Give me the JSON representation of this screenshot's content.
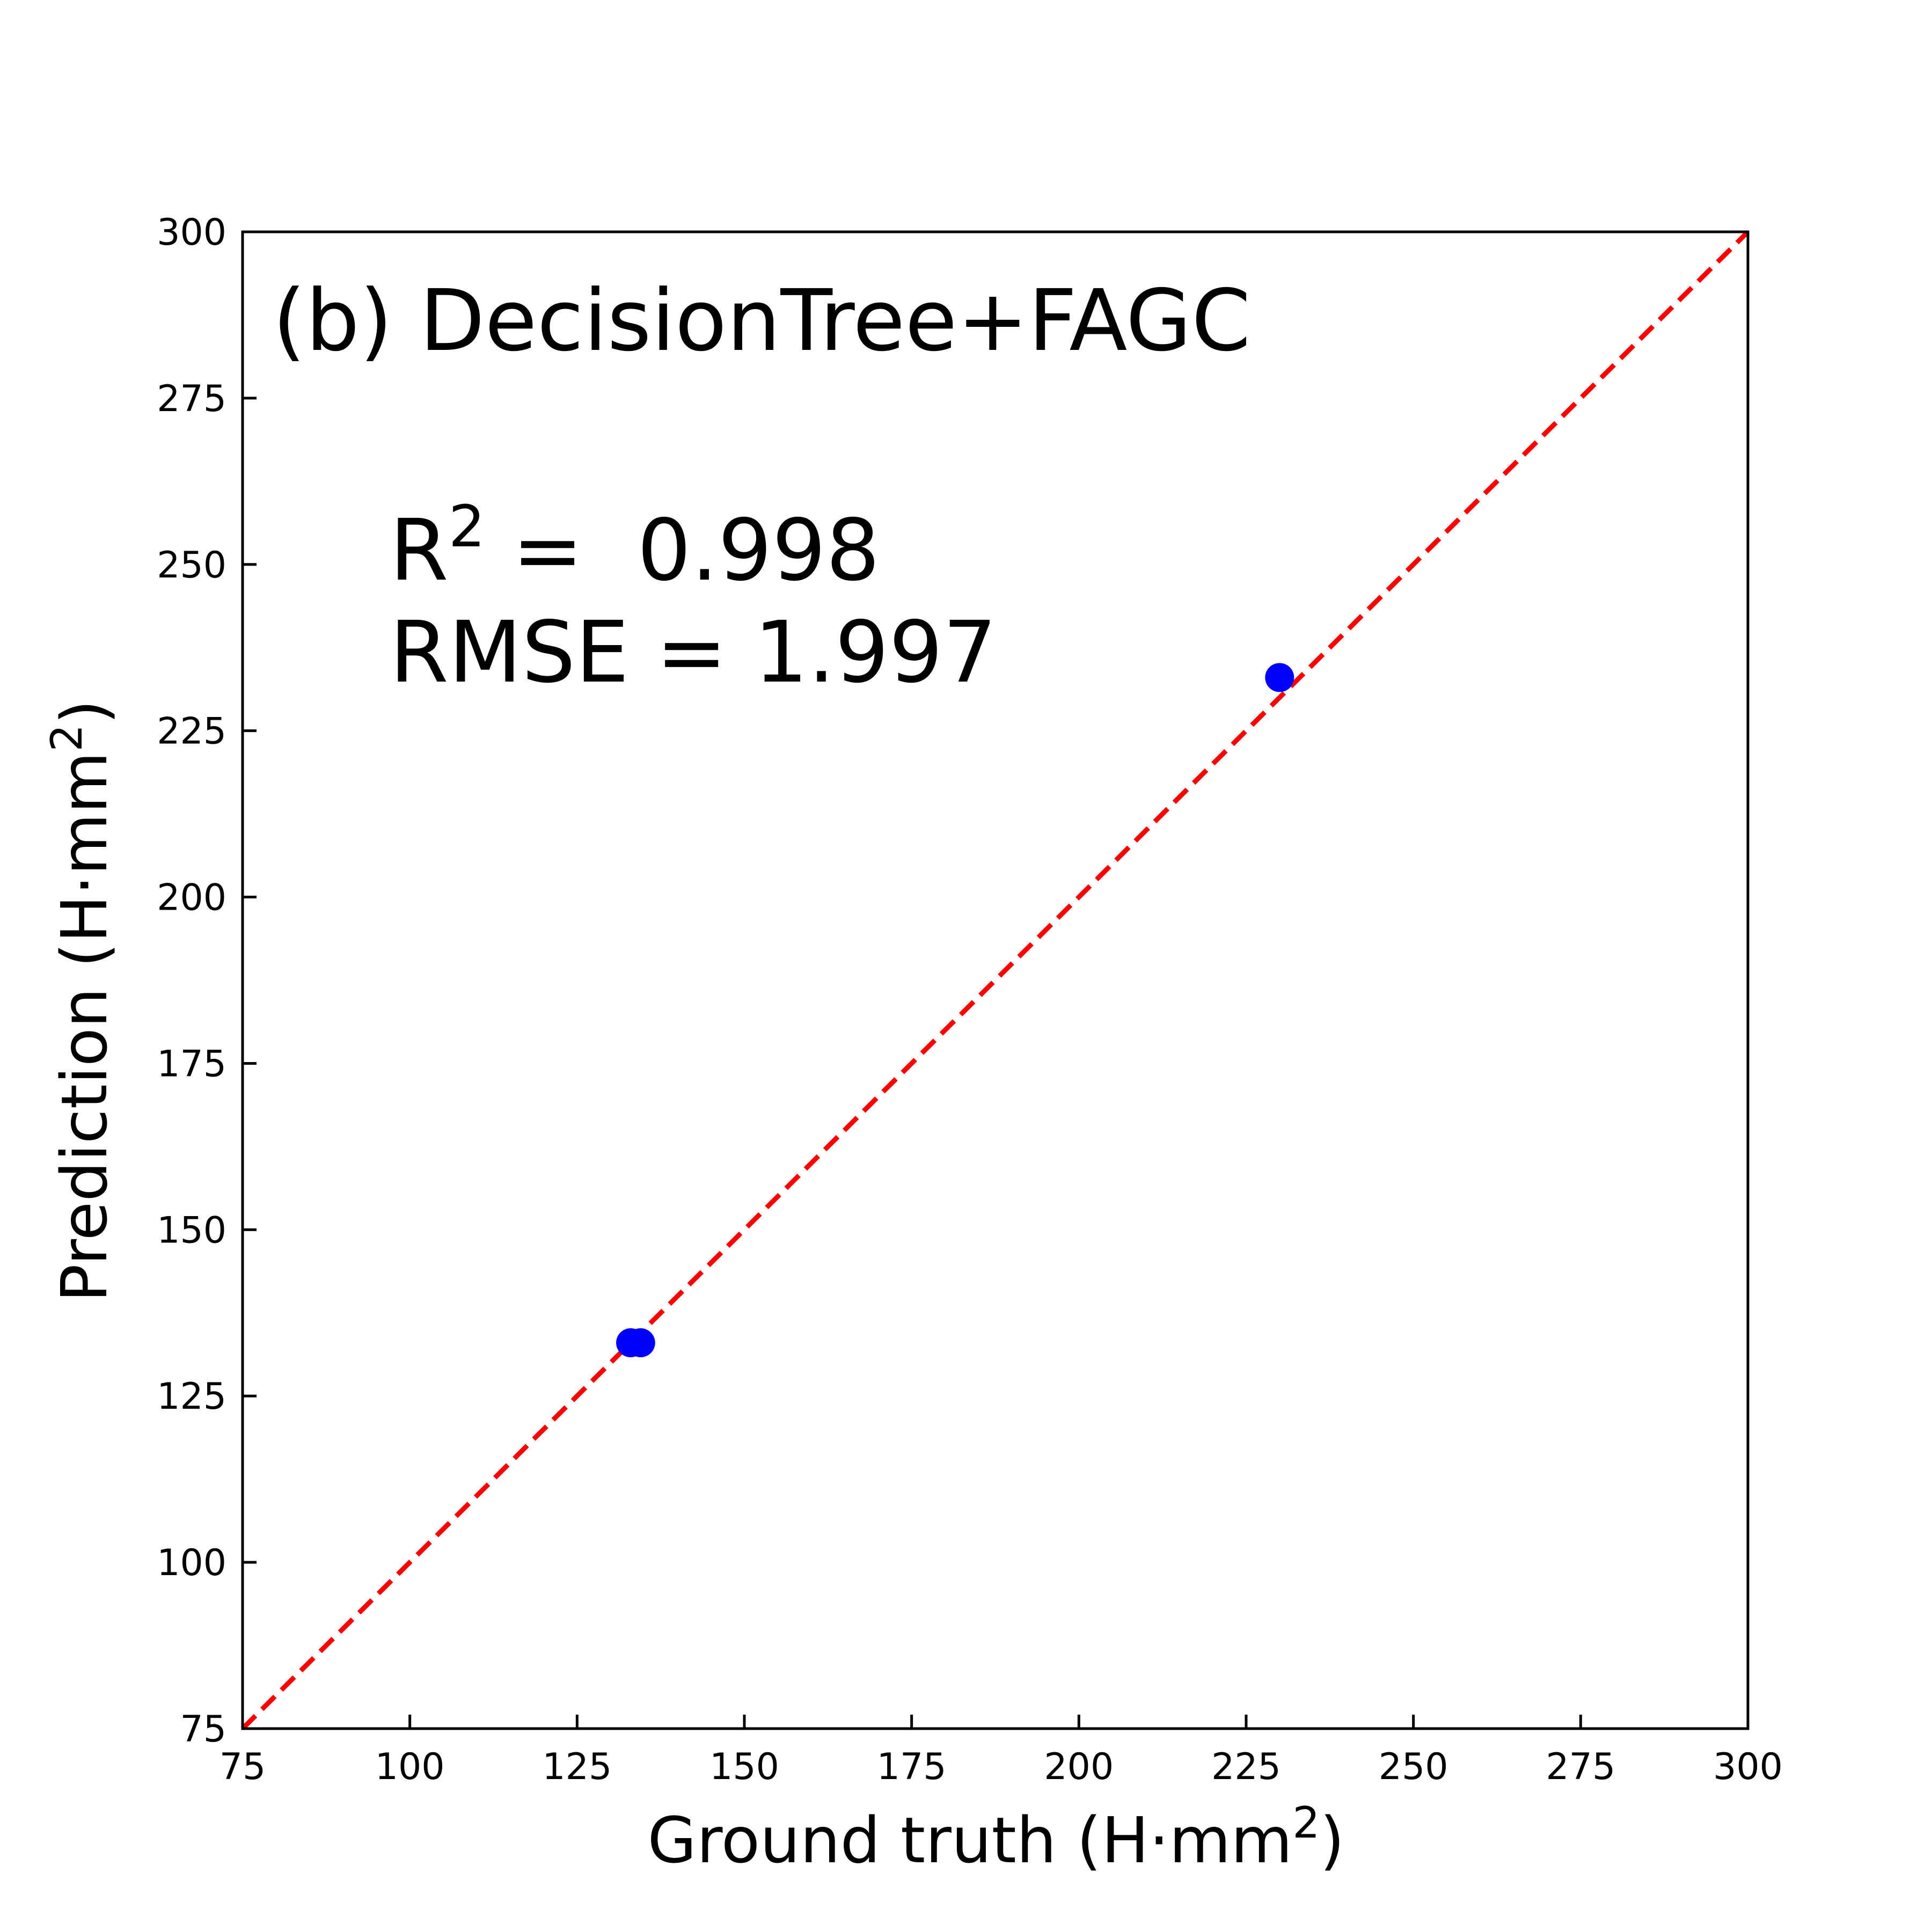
{
  "chart_data": {
    "type": "scatter",
    "title": "(b) DecisionTree+FAGC",
    "xlabel": {
      "prefix": "Ground truth (H·mm",
      "sup": "2",
      "suffix": ")"
    },
    "ylabel": {
      "prefix": "Prediction (H·mm",
      "sup": "2",
      "suffix": ")"
    },
    "xlim": [
      75,
      300
    ],
    "ylim": [
      75,
      300
    ],
    "xticks": [
      75,
      100,
      125,
      150,
      175,
      200,
      225,
      250,
      275,
      300
    ],
    "yticks": [
      75,
      100,
      125,
      150,
      175,
      200,
      225,
      250,
      275,
      300
    ],
    "grid": false,
    "series": [
      {
        "name": "samples",
        "color": "#0000ff",
        "marker": "circle",
        "x": [
          133.0,
          134.5,
          230.0
        ],
        "y": [
          133.0,
          133.0,
          233.0
        ]
      }
    ],
    "reference_line": {
      "from": [
        75,
        75
      ],
      "to": [
        300,
        300
      ],
      "color": "#ff0000",
      "style": "dashed"
    },
    "annotations": {
      "r2_prefix": "R",
      "r2_sup": "2",
      "r2_suffix": " =  0.998",
      "rmse": "RMSE = 1.997"
    }
  }
}
